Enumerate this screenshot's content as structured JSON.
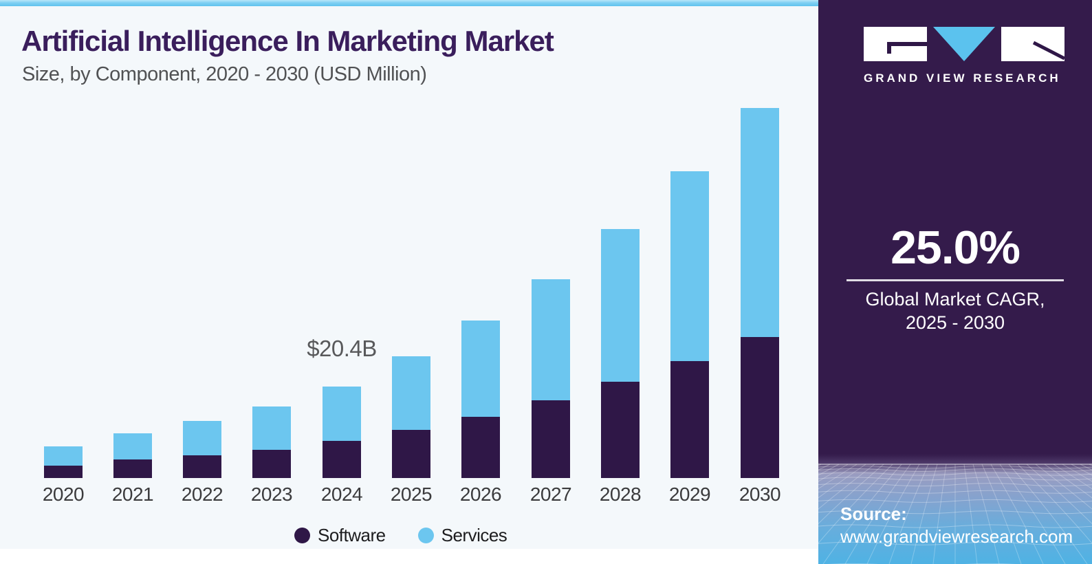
{
  "header": {
    "title": "Artificial Intelligence In Marketing Market",
    "subtitle": "Size, by Component, 2020 - 2030 (USD Million)"
  },
  "chart_data": {
    "type": "bar",
    "stacked": true,
    "title": "Artificial Intelligence In Marketing Market Size, by Component, 2020 - 2030 (USD Million)",
    "unit": "USD Million",
    "categories": [
      "2020",
      "2021",
      "2022",
      "2023",
      "2024",
      "2025",
      "2026",
      "2027",
      "2028",
      "2029",
      "2030"
    ],
    "series": [
      {
        "name": "Software",
        "color": "#2f1747",
        "values": [
          2800,
          4100,
          5100,
          6300,
          8300,
          10700,
          13700,
          17300,
          21500,
          26100,
          31400
        ]
      },
      {
        "name": "Services",
        "color": "#6cc6ef",
        "values": [
          4300,
          5900,
          7600,
          9700,
          12100,
          16400,
          21500,
          27000,
          34000,
          42300,
          51000
        ]
      }
    ],
    "totals": [
      7100,
      10000,
      12700,
      16000,
      20400,
      27100,
      35200,
      44300,
      55500,
      68400,
      82400
    ],
    "annotation": {
      "category": "2024",
      "text": "$20.4B"
    },
    "ylim": [
      0,
      85000
    ],
    "grid": false,
    "legend_position": "bottom",
    "xlabel": "",
    "ylabel": ""
  },
  "sidebar": {
    "logo": {
      "brand": "GRAND VIEW RESEARCH"
    },
    "cagr": {
      "value": "25.0%",
      "label_line1": "Global Market CAGR,",
      "label_line2": "2025 - 2030"
    },
    "source": {
      "label": "Source:",
      "url": "www.grandviewresearch.com"
    }
  },
  "colors": {
    "software": "#2f1747",
    "services": "#6cc6ef",
    "title_purple": "#3a1e5c",
    "sidebar_purple": "#341b4b",
    "panel_background": "#f4f8fb",
    "accent_stripe": "#7fd0f3",
    "mesh_blue": "#4fb2e4"
  }
}
